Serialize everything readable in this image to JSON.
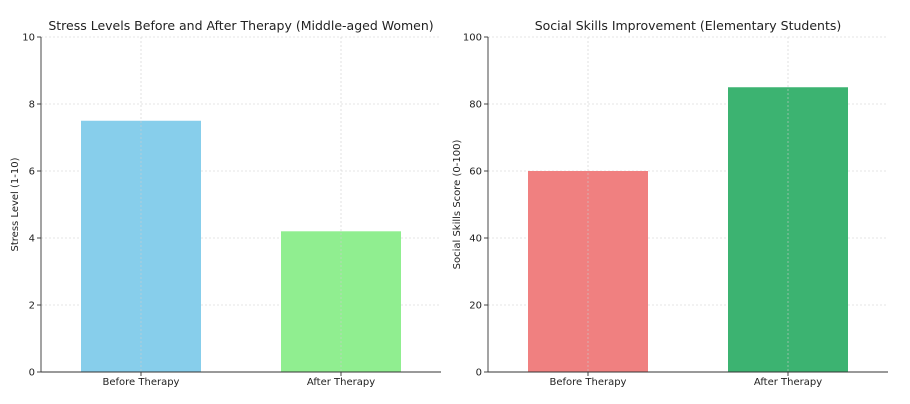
{
  "chart_data": [
    {
      "type": "bar",
      "title": "Stress Levels Before and After Therapy (Middle-aged Women)",
      "xlabel": "",
      "ylabel": "Stress Level (1-10)",
      "categories": [
        "Before Therapy",
        "After Therapy"
      ],
      "values": [
        7.5,
        4.2
      ],
      "colors": [
        "#87ceeb",
        "#90ee90"
      ],
      "ylim": [
        0,
        10
      ],
      "yticks": [
        0,
        2,
        4,
        6,
        8,
        10
      ],
      "grid": true
    },
    {
      "type": "bar",
      "title": "Social Skills Improvement (Elementary Students)",
      "xlabel": "",
      "ylabel": "Social Skills Score (0-100)",
      "categories": [
        "Before Therapy",
        "After Therapy"
      ],
      "values": [
        60,
        85
      ],
      "colors": [
        "#f08080",
        "#3cb371"
      ],
      "ylim": [
        0,
        100
      ],
      "yticks": [
        0,
        20,
        40,
        60,
        80,
        100
      ],
      "grid": true
    }
  ]
}
